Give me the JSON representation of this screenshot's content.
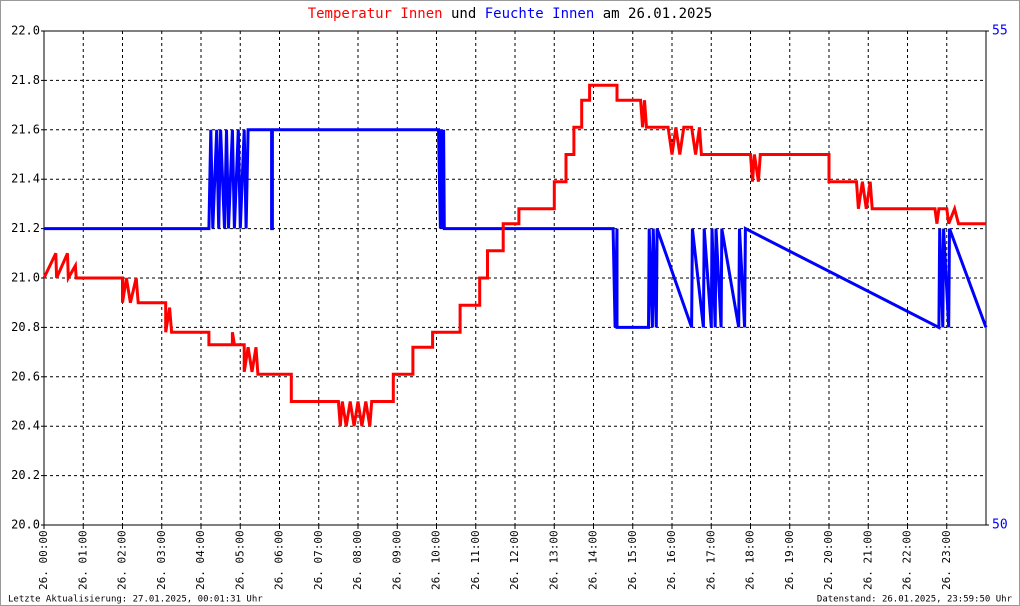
{
  "chart_data": {
    "type": "line",
    "title": [
      {
        "text": "Temperatur Innen",
        "color": "#ff0000"
      },
      {
        "text": "und",
        "color": "#000000"
      },
      {
        "text": "Feuchte Innen",
        "color": "#0000ff"
      },
      {
        "text": "am 26.01.2025",
        "color": "#000000"
      }
    ],
    "footer_left": "Letzte Aktualisierung: 27.01.2025, 00:01:31 Uhr",
    "footer_right": "Datenstand: 26.01.2025, 23:59:50 Uhr",
    "grid": true,
    "xlim": [
      0,
      24
    ],
    "xticks": [
      {
        "value": 0,
        "label": "26. 00:00"
      },
      {
        "value": 1,
        "label": "26. 01:00"
      },
      {
        "value": 2,
        "label": "26. 02:00"
      },
      {
        "value": 3,
        "label": "26. 03:00"
      },
      {
        "value": 4,
        "label": "26. 04:00"
      },
      {
        "value": 5,
        "label": "26. 05:00"
      },
      {
        "value": 6,
        "label": "26. 06:00"
      },
      {
        "value": 7,
        "label": "26. 07:00"
      },
      {
        "value": 8,
        "label": "26. 08:00"
      },
      {
        "value": 9,
        "label": "26. 09:00"
      },
      {
        "value": 10,
        "label": "26. 10:00"
      },
      {
        "value": 11,
        "label": "26. 11:00"
      },
      {
        "value": 12,
        "label": "26. 12:00"
      },
      {
        "value": 13,
        "label": "26. 13:00"
      },
      {
        "value": 14,
        "label": "26. 14:00"
      },
      {
        "value": 15,
        "label": "26. 15:00"
      },
      {
        "value": 16,
        "label": "26. 16:00"
      },
      {
        "value": 17,
        "label": "26. 17:00"
      },
      {
        "value": 18,
        "label": "26. 18:00"
      },
      {
        "value": 19,
        "label": "26. 19:00"
      },
      {
        "value": 20,
        "label": "26. 20:00"
      },
      {
        "value": 21,
        "label": "26. 21:00"
      },
      {
        "value": 22,
        "label": "26. 22:00"
      },
      {
        "value": 23,
        "label": "26. 23:00"
      }
    ],
    "ylim": [
      20,
      22
    ],
    "yticks": [
      {
        "value": 20,
        "label": "20.0"
      },
      20.2,
      20.4,
      20.6,
      20.8,
      {
        "value": 21,
        "label": "21.0"
      },
      21.2,
      21.4,
      21.6,
      21.8,
      {
        "value": 22,
        "label": "22.0"
      }
    ],
    "y2lim": [
      50,
      55
    ],
    "y2ticks": [
      50,
      55
    ],
    "series": [
      {
        "name": "Temperatur Innen",
        "color": "#ff0000",
        "x": [
          0,
          0.3,
          0.32,
          0.6,
          0.62,
          0.8,
          0.82,
          2.0,
          2.0,
          2.1,
          2.2,
          2.35,
          2.4,
          3.1,
          3.1,
          3.2,
          3.25,
          4.2,
          4.2,
          4.8,
          4.8,
          4.85,
          5.1,
          5.1,
          5.2,
          5.3,
          5.4,
          5.45,
          6.3,
          6.3,
          7.5,
          7.55,
          7.6,
          7.7,
          7.8,
          7.9,
          8.0,
          8.1,
          8.2,
          8.3,
          8.35,
          8.9,
          8.9,
          9.4,
          9.4,
          9.9,
          9.9,
          10.6,
          10.6,
          11.1,
          11.1,
          11.3,
          11.3,
          11.7,
          11.7,
          12.1,
          12.1,
          13.0,
          13.0,
          13.3,
          13.3,
          13.5,
          13.5,
          13.7,
          13.7,
          13.9,
          13.9,
          14.6,
          14.6,
          15.2,
          15.25,
          15.3,
          15.35,
          15.9,
          16.0,
          16.1,
          16.2,
          16.3,
          16.5,
          16.6,
          16.7,
          16.75,
          18.0,
          18.05,
          18.1,
          18.2,
          18.25,
          20.0,
          20.0,
          20.7,
          20.75,
          20.85,
          20.95,
          21.05,
          21.1,
          22.7,
          22.75,
          22.8,
          23.0,
          23.05,
          23.2,
          23.3,
          24.0
        ],
        "values": [
          21.0,
          21.1,
          21.0,
          21.1,
          21.0,
          21.05,
          21.0,
          21.0,
          20.9,
          21.0,
          20.9,
          21.0,
          20.9,
          20.9,
          20.78,
          20.88,
          20.78,
          20.78,
          20.73,
          20.73,
          20.78,
          20.73,
          20.73,
          20.62,
          20.72,
          20.62,
          20.72,
          20.61,
          20.61,
          20.5,
          20.5,
          20.4,
          20.5,
          20.4,
          20.5,
          20.4,
          20.5,
          20.4,
          20.5,
          20.4,
          20.5,
          20.5,
          20.61,
          20.61,
          20.72,
          20.72,
          20.78,
          20.78,
          20.89,
          20.89,
          21.0,
          21.0,
          21.11,
          21.11,
          21.22,
          21.22,
          21.28,
          21.28,
          21.39,
          21.39,
          21.5,
          21.5,
          21.61,
          21.61,
          21.72,
          21.72,
          21.78,
          21.78,
          21.72,
          21.72,
          21.61,
          21.72,
          21.61,
          21.61,
          21.5,
          21.61,
          21.5,
          21.61,
          21.61,
          21.5,
          21.61,
          21.5,
          21.5,
          21.39,
          21.5,
          21.39,
          21.5,
          21.5,
          21.39,
          21.39,
          21.28,
          21.39,
          21.28,
          21.39,
          21.28,
          21.28,
          21.22,
          21.28,
          21.28,
          21.22,
          21.28,
          21.22,
          21.22
        ]
      },
      {
        "name": "Feuchte Innen",
        "color": "#0000ff",
        "axis": "y2",
        "x": [
          0,
          4.2,
          4.25,
          4.3,
          4.4,
          4.45,
          4.5,
          4.6,
          4.65,
          4.7,
          4.8,
          4.85,
          4.95,
          5.0,
          5.1,
          5.15,
          5.2,
          5.8,
          5.8,
          5.82,
          5.82,
          10.05,
          10.1,
          10.12,
          10.15,
          10.18,
          10.2,
          14.5,
          14.55,
          14.6,
          14.6,
          15.4,
          15.42,
          15.5,
          15.52,
          15.6,
          15.62,
          16.5,
          16.52,
          16.8,
          16.82,
          17.0,
          17.02,
          17.1,
          17.12,
          17.25,
          17.27,
          17.7,
          17.72,
          17.85,
          17.87,
          22.8,
          22.82,
          22.9,
          22.92,
          23.05,
          23.07,
          24.0
        ],
        "values": [
          53,
          53,
          54,
          53,
          54,
          53,
          54,
          53,
          54,
          53,
          54,
          53,
          54,
          53,
          54,
          53,
          54,
          54,
          53,
          53,
          54,
          54,
          53,
          54,
          53,
          54,
          53,
          53,
          52,
          53,
          52,
          52,
          53,
          52,
          53,
          52,
          53,
          52,
          53,
          52,
          53,
          52,
          53,
          52,
          53,
          52,
          53,
          52,
          53,
          52,
          53,
          52,
          53,
          52,
          53,
          52,
          53,
          52
        ]
      }
    ]
  }
}
